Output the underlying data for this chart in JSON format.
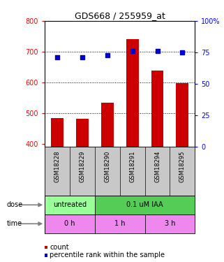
{
  "title": "GDS668 / 255959_at",
  "samples": [
    "GSM18228",
    "GSM18229",
    "GSM18290",
    "GSM18291",
    "GSM18294",
    "GSM18295"
  ],
  "counts": [
    483,
    481,
    535,
    742,
    638,
    597
  ],
  "percentiles": [
    71,
    71,
    73,
    76,
    76,
    75
  ],
  "ylim_left": [
    390,
    800
  ],
  "ylim_right": [
    0,
    100
  ],
  "yticks_left": [
    400,
    500,
    600,
    700,
    800
  ],
  "yticks_right": [
    0,
    25,
    50,
    75,
    100
  ],
  "bar_color": "#cc0000",
  "dot_color": "#0000cc",
  "dose_labels": [
    {
      "label": "untreated",
      "start": 0,
      "end": 2,
      "color": "#99ff99"
    },
    {
      "label": "0.1 uM IAA",
      "start": 2,
      "end": 6,
      "color": "#55cc55"
    }
  ],
  "time_labels": [
    {
      "label": "0 h",
      "start": 0,
      "end": 2,
      "color": "#ee88ee"
    },
    {
      "label": "1 h",
      "start": 2,
      "end": 4,
      "color": "#ee88ee"
    },
    {
      "label": "3 h",
      "start": 4,
      "end": 6,
      "color": "#ee88ee"
    }
  ],
  "grid_color": "#000000",
  "bg_color": "#ffffff",
  "sample_bg_color": "#c8c8c8",
  "title_fontsize": 9,
  "tick_fontsize": 7,
  "sample_fontsize": 6,
  "row_fontsize": 7,
  "legend_fontsize": 7
}
